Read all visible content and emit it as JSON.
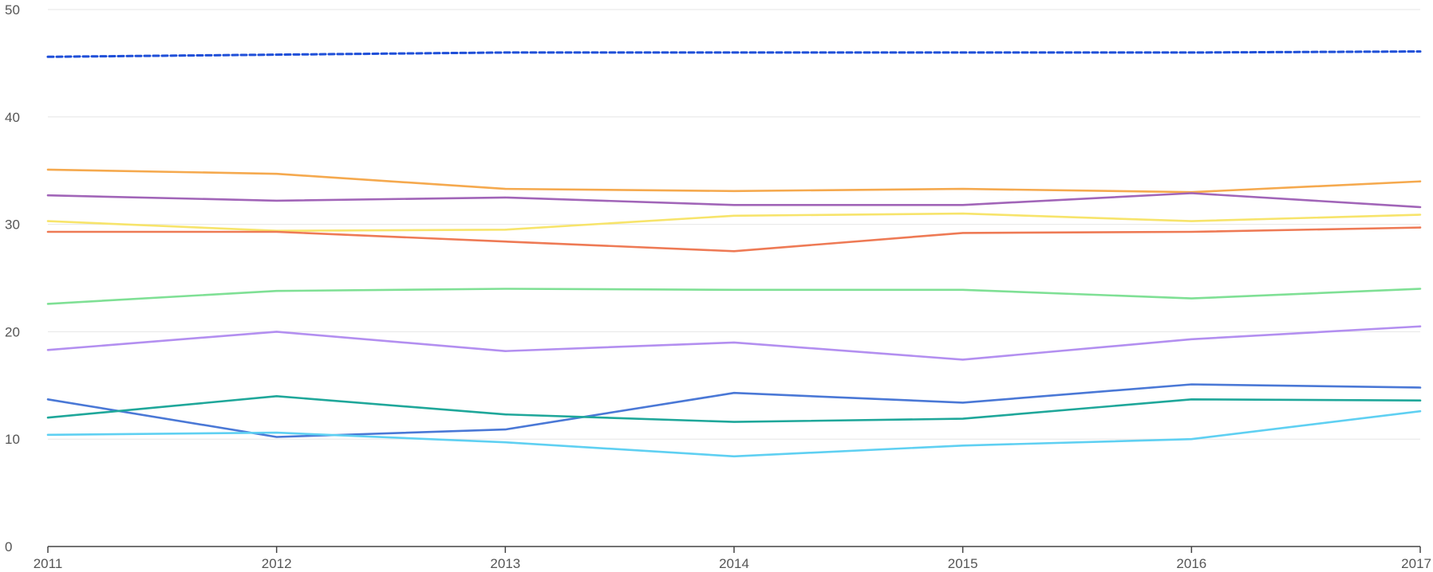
{
  "chart_data": {
    "type": "line",
    "title": "",
    "xlabel": "",
    "ylabel": "",
    "x": [
      "2011",
      "2012",
      "2013",
      "2014",
      "2015",
      "2016",
      "2017"
    ],
    "ylim": [
      0,
      50
    ],
    "yticks": [
      0,
      10,
      20,
      30,
      40,
      50
    ],
    "grid": true,
    "legend": "none",
    "series": [
      {
        "color": "#1f4fd8",
        "style": "dashed",
        "values": [
          45.6,
          45.8,
          46.0,
          46.0,
          46.0,
          46.0,
          46.1
        ]
      },
      {
        "color": "#f5a94e",
        "style": "solid",
        "values": [
          35.1,
          34.7,
          33.3,
          33.1,
          33.3,
          33.0,
          34.0
        ]
      },
      {
        "color": "#a165b8",
        "style": "solid",
        "values": [
          32.7,
          32.2,
          32.5,
          31.8,
          31.8,
          32.9,
          31.6
        ]
      },
      {
        "color": "#f7e46b",
        "style": "solid",
        "values": [
          30.3,
          29.4,
          29.5,
          30.8,
          31.0,
          30.3,
          30.9
        ]
      },
      {
        "color": "#ee7a55",
        "style": "solid",
        "values": [
          29.3,
          29.3,
          28.4,
          27.5,
          29.2,
          29.3,
          29.7
        ]
      },
      {
        "color": "#7fe095",
        "style": "solid",
        "values": [
          22.6,
          23.8,
          24.0,
          23.9,
          23.9,
          23.1,
          24.0
        ]
      },
      {
        "color": "#b38ff0",
        "style": "solid",
        "values": [
          18.3,
          20.0,
          18.2,
          19.0,
          17.4,
          19.3,
          20.5
        ]
      },
      {
        "color": "#4a78d6",
        "style": "solid",
        "values": [
          13.7,
          10.2,
          10.9,
          14.3,
          13.4,
          15.1,
          14.8
        ]
      },
      {
        "color": "#1fa79a",
        "style": "solid",
        "values": [
          12.0,
          14.0,
          12.3,
          11.6,
          11.9,
          13.7,
          13.6
        ]
      },
      {
        "color": "#5fd0f2",
        "style": "solid",
        "values": [
          10.4,
          10.6,
          9.7,
          8.4,
          9.4,
          10.0,
          12.6
        ]
      }
    ]
  }
}
